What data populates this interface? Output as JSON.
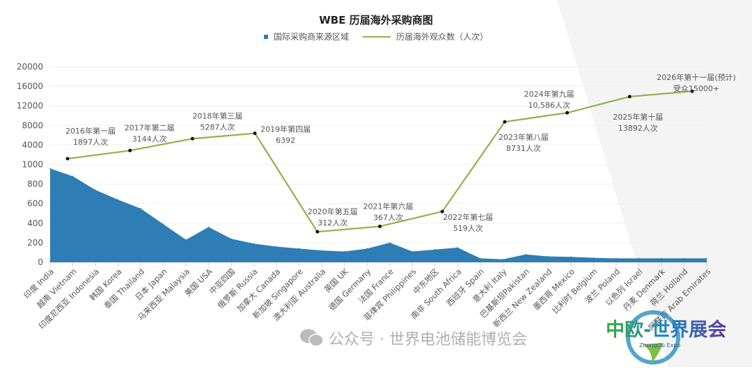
{
  "chart_data": {
    "type": "area+line",
    "title": "WBE 历届海外采购商图",
    "legend_position": "top",
    "grid": true,
    "y_ticks": [
      0,
      200,
      400,
      600,
      800,
      1000,
      4000,
      8000,
      12000,
      16000,
      20000
    ],
    "ylim": [
      0,
      20000
    ],
    "categories": [
      "印度 India",
      "越南 Vietnam",
      "印度尼西亚 Indonesia",
      "韩国 Korea",
      "泰国 Thailand",
      "日本 Japan",
      "马来西亚 Malaysia",
      "美国 USA",
      "中亚四国",
      "俄罗斯 Russia",
      "加拿大 Canada",
      "新加坡 Singapore",
      "澳大利亚 Australia",
      "英国 UK",
      "德国 Germany",
      "法国 France",
      "菲律宾 Philippines",
      "中东地区",
      "南非 South Africa",
      "西班牙 Spain",
      "意大利 Italy",
      "巴基斯坦Pakistan",
      "新西兰 New Zealand",
      "墨西哥 Mexico",
      "比利时 Belgium",
      "波兰 Poland",
      "以色列 Israel",
      "丹麦 Denmark",
      "荷兰 Holland",
      "阿联酋 Arab Emirates"
    ],
    "series": [
      {
        "name": "国际采购商来源区域",
        "type": "area",
        "color": "#2e7db5",
        "values": [
          960,
          880,
          740,
          640,
          550,
          390,
          230,
          360,
          240,
          190,
          160,
          140,
          120,
          110,
          140,
          200,
          110,
          130,
          150,
          40,
          30,
          80,
          60,
          55,
          45,
          40,
          40,
          40,
          40,
          40
        ]
      },
      {
        "name": "历届海外观众数（人次）",
        "type": "line",
        "color": "#93b04a",
        "points": [
          {
            "label": "2016年第一届",
            "value_label": "1897人次",
            "value": 1897
          },
          {
            "label": "2017年第二届",
            "value_label": "3144人次",
            "value": 3144
          },
          {
            "label": "2018年第三届",
            "value_label": "5287人次",
            "value": 5287
          },
          {
            "label": "2019年第四届",
            "value_label": "6392",
            "value": 6392
          },
          {
            "label": "2020年第五届",
            "value_label": "312人次",
            "value": 312
          },
          {
            "label": "2021年第六届",
            "value_label": "367人次",
            "value": 367
          },
          {
            "label": "2022年第七届",
            "value_label": "519人次",
            "value": 519
          },
          {
            "label": "2023年第八届",
            "value_label": "8731人次",
            "value": 8731
          },
          {
            "label": "2024年第九届",
            "value_label": "10,586人次",
            "value": 10586
          },
          {
            "label": "2025年第十届",
            "value_label": "13892人次",
            "value": 13892
          },
          {
            "label": "2026年第十一届(预计)",
            "value_label": "受众15000+",
            "value": 15000
          }
        ]
      }
    ]
  },
  "watermark": {
    "icon": "wechat-icon",
    "text": "公众号 · 世界电池储能博览会"
  },
  "logo": {
    "text": "中欧-世界展会",
    "subtext": "ZhongOu Expo"
  }
}
